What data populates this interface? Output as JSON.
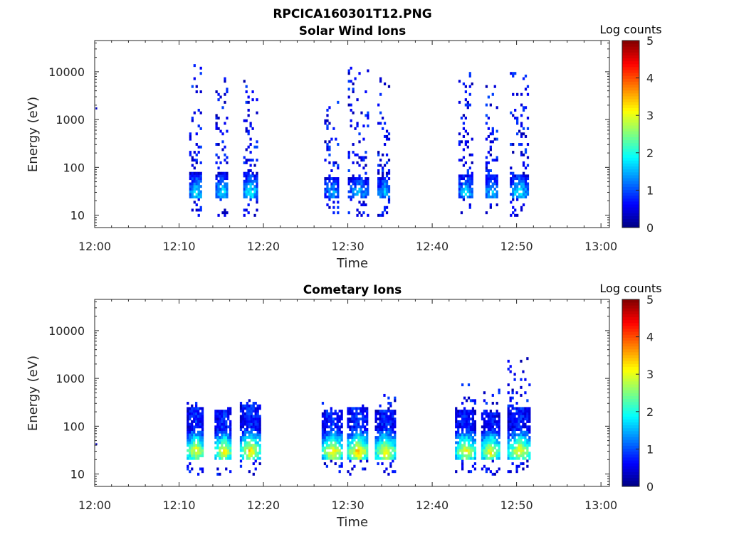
{
  "figure": {
    "title": "RPCICA160301T12.PNG"
  },
  "chart_data": [
    {
      "type": "heatmap",
      "title": "Solar Wind Ions",
      "xlabel": "Time",
      "ylabel": "Energy (eV)",
      "x_ticks": [
        "12:00",
        "12:10",
        "12:20",
        "12:30",
        "12:40",
        "12:50",
        "13:00"
      ],
      "xlim_minutes": [
        0,
        61
      ],
      "y_ticks": [
        10,
        100,
        1000,
        10000
      ],
      "y_tick_labels": [
        "10",
        "100",
        "1000",
        "10000"
      ],
      "y_scale": "log",
      "ylim": [
        5.5,
        45000
      ],
      "colorbar": {
        "label": "Log counts",
        "range": [
          0,
          5
        ],
        "ticks": [
          "0",
          "1",
          "2",
          "3",
          "4",
          "5"
        ],
        "colormap": "jet"
      },
      "bursts": [
        {
          "start_min": 11.2,
          "end_min": 12.7,
          "dense_min_eV": 22,
          "dense_max_eV": 75,
          "sparse_max_eV": 15000,
          "peak": 1.9
        },
        {
          "start_min": 14.3,
          "end_min": 15.8,
          "dense_min_eV": 22,
          "dense_max_eV": 75,
          "sparse_max_eV": 9000,
          "peak": 1.9
        },
        {
          "start_min": 17.6,
          "end_min": 19.2,
          "dense_min_eV": 22,
          "dense_max_eV": 75,
          "sparse_max_eV": 6000,
          "peak": 2.0
        },
        {
          "start_min": 27.2,
          "end_min": 28.9,
          "dense_min_eV": 22,
          "dense_max_eV": 60,
          "sparse_max_eV": 3000,
          "peak": 1.5
        },
        {
          "start_min": 30.0,
          "end_min": 32.3,
          "dense_min_eV": 22,
          "dense_max_eV": 60,
          "sparse_max_eV": 12000,
          "peak": 1.6
        },
        {
          "start_min": 33.5,
          "end_min": 35.0,
          "dense_min_eV": 22,
          "dense_max_eV": 60,
          "sparse_max_eV": 8000,
          "peak": 1.6
        },
        {
          "start_min": 43.1,
          "end_min": 44.7,
          "dense_min_eV": 22,
          "dense_max_eV": 70,
          "sparse_max_eV": 9000,
          "peak": 1.8
        },
        {
          "start_min": 46.3,
          "end_min": 47.7,
          "dense_min_eV": 22,
          "dense_max_eV": 70,
          "sparse_max_eV": 8000,
          "peak": 1.8
        },
        {
          "start_min": 49.2,
          "end_min": 51.3,
          "dense_min_eV": 22,
          "dense_max_eV": 70,
          "sparse_max_eV": 10000,
          "peak": 2.0
        }
      ]
    },
    {
      "type": "heatmap",
      "title": "Cometary Ions",
      "xlabel": "Time",
      "ylabel": "Energy (eV)",
      "x_ticks": [
        "12:00",
        "12:10",
        "12:20",
        "12:30",
        "12:40",
        "12:50",
        "13:00"
      ],
      "xlim_minutes": [
        0,
        61
      ],
      "y_ticks": [
        10,
        100,
        1000,
        10000
      ],
      "y_tick_labels": [
        "10",
        "100",
        "1000",
        "10000"
      ],
      "y_scale": "log",
      "ylim": [
        5.5,
        45000
      ],
      "colorbar": {
        "label": "Log counts",
        "range": [
          0,
          5
        ],
        "ticks": [
          "0",
          "1",
          "2",
          "3",
          "4",
          "5"
        ],
        "colormap": "jet"
      },
      "bursts": [
        {
          "start_min": 10.9,
          "end_min": 12.9,
          "dense_min_eV": 18,
          "dense_max_eV": 250,
          "sparse_max_eV": 350,
          "peak": 3.3
        },
        {
          "start_min": 14.2,
          "end_min": 16.2,
          "dense_min_eV": 18,
          "dense_max_eV": 220,
          "sparse_max_eV": 300,
          "peak": 3.3
        },
        {
          "start_min": 17.2,
          "end_min": 19.5,
          "dense_min_eV": 18,
          "dense_max_eV": 280,
          "sparse_max_eV": 350,
          "peak": 3.5
        },
        {
          "start_min": 26.9,
          "end_min": 29.3,
          "dense_min_eV": 18,
          "dense_max_eV": 220,
          "sparse_max_eV": 300,
          "peak": 3.5
        },
        {
          "start_min": 29.9,
          "end_min": 32.3,
          "dense_min_eV": 18,
          "dense_max_eV": 250,
          "sparse_max_eV": 300,
          "peak": 3.6
        },
        {
          "start_min": 33.2,
          "end_min": 35.6,
          "dense_min_eV": 18,
          "dense_max_eV": 220,
          "sparse_max_eV": 450,
          "peak": 3.4
        },
        {
          "start_min": 42.7,
          "end_min": 45.0,
          "dense_min_eV": 18,
          "dense_max_eV": 200,
          "sparse_max_eV": 700,
          "peak": 3.3
        },
        {
          "start_min": 45.8,
          "end_min": 47.9,
          "dense_min_eV": 18,
          "dense_max_eV": 180,
          "sparse_max_eV": 550,
          "peak": 3.3
        },
        {
          "start_min": 48.9,
          "end_min": 51.6,
          "dense_min_eV": 18,
          "dense_max_eV": 250,
          "sparse_max_eV": 2800,
          "peak": 3.3
        }
      ]
    }
  ]
}
